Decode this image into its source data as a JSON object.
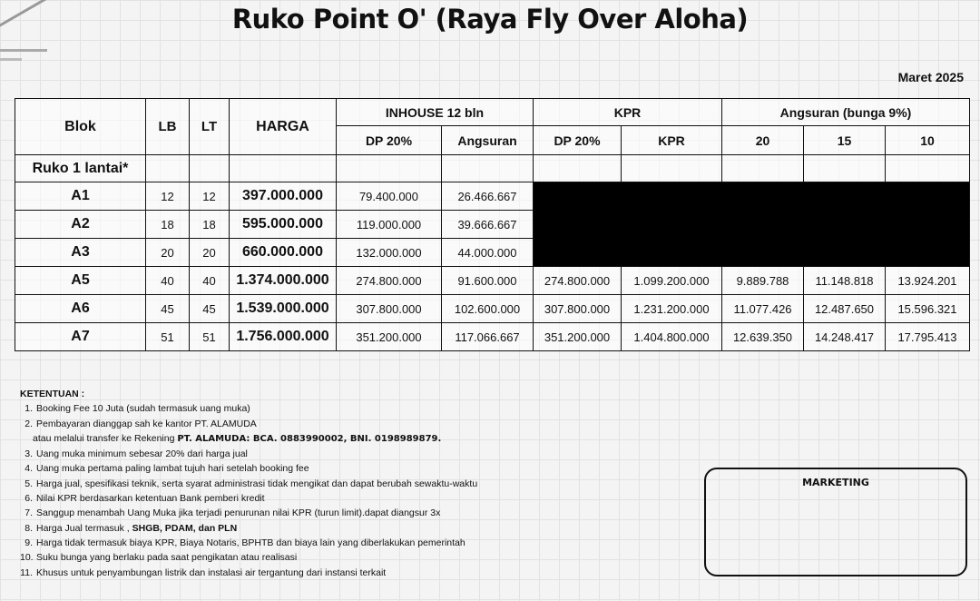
{
  "title": "Ruko Point O' (Raya Fly Over Aloha)",
  "date": "Maret 2025",
  "table": {
    "headers": {
      "blok": "Blok",
      "lb": "LB",
      "lt": "LT",
      "harga": "HARGA",
      "inhouse": "INHOUSE 12 bln",
      "kpr": "KPR",
      "angsuran": "Angsuran (bunga 9%)",
      "sub": [
        "DP 20%",
        "Angsuran",
        "DP 20%",
        "KPR",
        "20",
        "15",
        "10"
      ]
    },
    "section": "Ruko 1 lantai*",
    "rows": [
      {
        "blok": "A1",
        "lb": "12",
        "lt": "12",
        "harga": "397.000.000",
        "dp": "79.400.000",
        "angsuran": "26.466.667"
      },
      {
        "blok": "A2",
        "lb": "18",
        "lt": "18",
        "harga": "595.000.000",
        "dp": "119.000.000",
        "angsuran": "39.666.667"
      },
      {
        "blok": "A3",
        "lb": "20",
        "lt": "20",
        "harga": "660.000.000",
        "dp": "132.000.000",
        "angsuran": "44.000.000"
      },
      {
        "blok": "A5",
        "lb": "40",
        "lt": "40",
        "harga": "1.374.000.000",
        "dp": "274.800.000",
        "angsuran": "91.600.000",
        "kpr_dp": "274.800.000",
        "kpr": "1.099.200.000",
        "a20": "9.889.788",
        "a15": "11.148.818",
        "a10": "13.924.201"
      },
      {
        "blok": "A6",
        "lb": "45",
        "lt": "45",
        "harga": "1.539.000.000",
        "dp": "307.800.000",
        "angsuran": "102.600.000",
        "kpr_dp": "307.800.000",
        "kpr": "1.231.200.000",
        "a20": "11.077.426",
        "a15": "12.487.650",
        "a10": "15.596.321"
      },
      {
        "blok": "A7",
        "lb": "51",
        "lt": "51",
        "harga": "1.756.000.000",
        "dp": "351.200.000",
        "angsuran": "117.066.667",
        "kpr_dp": "351.200.000",
        "kpr": "1.404.800.000",
        "a20": "12.639.350",
        "a15": "14.248.417",
        "a10": "17.795.413"
      }
    ]
  },
  "terms": {
    "heading": "KETENTUAN :",
    "items": [
      {
        "n": "1.",
        "text": "Booking Fee 10 Juta (sudah termasuk uang muka)"
      },
      {
        "n": "2.",
        "text": "Pembayaran dianggap sah ke kantor PT. ALAMUDA"
      },
      {
        "n": "",
        "text": "atau melalui transfer ke Rekening ",
        "bold": "PT. ALAMUDA: BCA. 0883990002, BNI. 0198989879."
      },
      {
        "n": "3.",
        "text": "Uang muka minimum sebesar 20% dari harga jual"
      },
      {
        "n": "4.",
        "text": "Uang muka pertama paling lambat tujuh hari setelah booking fee"
      },
      {
        "n": "5.",
        "text": "Harga jual, spesifikasi teknik, serta syarat administrasi tidak mengikat dan dapat berubah sewaktu-waktu"
      },
      {
        "n": "6.",
        "text": "Nilai KPR berdasarkan ketentuan Bank pemberi kredit"
      },
      {
        "n": "7.",
        "text": "Sanggup menambah Uang Muka jika terjadi penurunan nilai KPR (turun limit).dapat diangsur 3x"
      },
      {
        "n": "8.",
        "text": "Harga Jual termasuk , ",
        "bold": "SHGB, PDAM, dan PLN"
      },
      {
        "n": "9.",
        "text": "Harga tidak termasuk biaya KPR, Biaya Notaris, BPHTB dan biaya lain yang diberlakukan pemerintah"
      },
      {
        "n": "10.",
        "text": "Suku bunga yang berlaku pada saat pengikatan atau realisasi"
      },
      {
        "n": "11.",
        "text": "Khusus untuk penyambungan listrik dan instalasi air tergantung dari instansi terkait"
      }
    ]
  },
  "marketing": "MARKETING"
}
